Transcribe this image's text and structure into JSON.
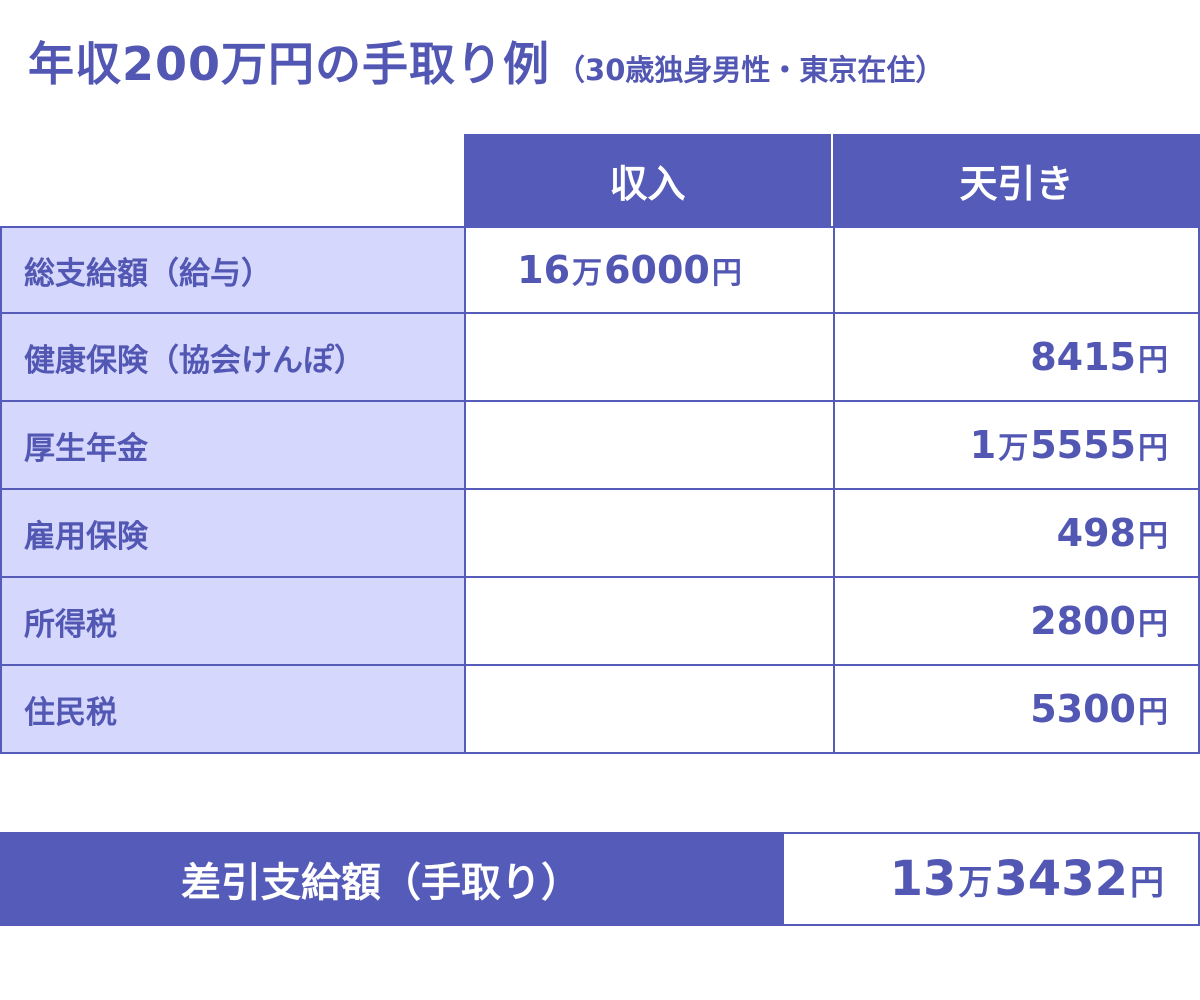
{
  "title": {
    "main": "年収200万円の手取り例",
    "sub": "（30歳独身男性・東京在住）"
  },
  "table": {
    "headers": {
      "income": "収入",
      "deductions": "天引き"
    },
    "rows": [
      {
        "label": "総支給額（給与）",
        "income": {
          "man": "16",
          "man_unit": "万",
          "rest": "6000",
          "unit": "円"
        },
        "deduction": null
      },
      {
        "label": "健康保険（協会けんぽ）",
        "income": null,
        "deduction": {
          "man": "",
          "man_unit": "",
          "rest": "8415",
          "unit": "円"
        }
      },
      {
        "label": "厚生年金",
        "income": null,
        "deduction": {
          "man": "1",
          "man_unit": "万",
          "rest": "5555",
          "unit": "円"
        }
      },
      {
        "label": "雇用保険",
        "income": null,
        "deduction": {
          "man": "",
          "man_unit": "",
          "rest": "498",
          "unit": "円"
        }
      },
      {
        "label": "所得税",
        "income": null,
        "deduction": {
          "man": "",
          "man_unit": "",
          "rest": "2800",
          "unit": "円"
        }
      },
      {
        "label": "住民税",
        "income": null,
        "deduction": {
          "man": "",
          "man_unit": "",
          "rest": "5300",
          "unit": "円"
        }
      }
    ]
  },
  "summary": {
    "label": "差引支給額（手取り）",
    "value": {
      "man": "13",
      "man_unit": "万",
      "rest": "3432",
      "unit": "円"
    }
  },
  "colors": {
    "accent": "#555bb8",
    "label_bg": "#d5d8fc",
    "text": "#5257b3"
  }
}
